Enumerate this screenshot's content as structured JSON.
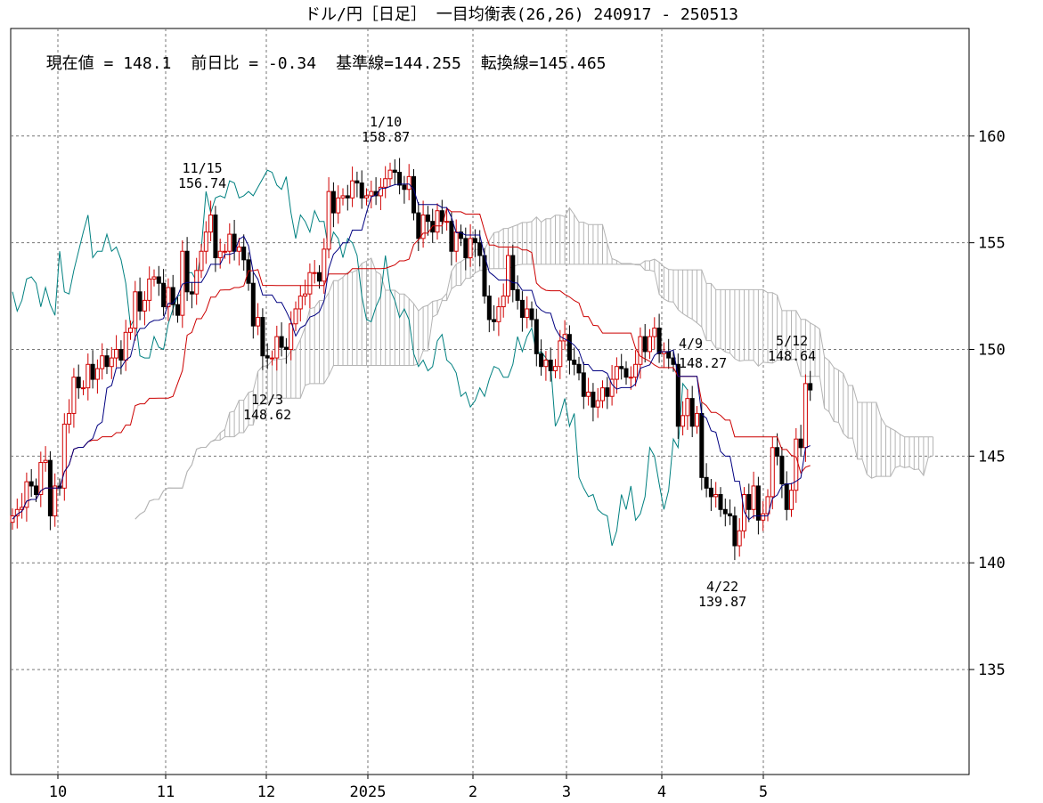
{
  "chart_data": {
    "type": "candlestick",
    "title": "ドル/円［日足］ 一目均衡表(26,26)  240917 - 250513",
    "info": {
      "current": "現在値 = 148.1",
      "change": "前日比 = -0.34",
      "kijun": "基準線=144.255",
      "tenkan": "転換線=145.465"
    },
    "ylim": [
      130.08,
      165.04
    ],
    "yticks": [
      135,
      140,
      145,
      150,
      155,
      160
    ],
    "xticks": [
      "10",
      "11",
      "12",
      "2025",
      "2",
      "3",
      "4",
      "5"
    ],
    "grid": true,
    "colors": {
      "up": "#d00000",
      "down": "#000000",
      "tenkan": "#000080",
      "kijun": "#cc0000",
      "chikou": "#008080",
      "cloud": "#b4b4b4"
    },
    "annotations": [
      {
        "date": "11/15",
        "value": "156.74"
      },
      {
        "date": "1/10",
        "value": "158.87"
      },
      {
        "date": "12/3",
        "value": "148.62"
      },
      {
        "date": "4/9",
        "value": "148.27"
      },
      {
        "date": "5/12",
        "value": "148.64"
      },
      {
        "date": "4/22",
        "value": "139.87"
      }
    ],
    "closes": [
      142.2,
      142.5,
      142.6,
      143.8,
      143.6,
      143.2,
      144.7,
      144.8,
      142.2,
      143.6,
      143.5,
      146.5,
      147.0,
      148.7,
      148.2,
      148.2,
      149.3,
      148.6,
      149.1,
      149.7,
      149.2,
      149.6,
      150.0,
      149.5,
      150.8,
      151.0,
      152.7,
      151.8,
      152.3,
      153.3,
      153.4,
      153.1,
      152.0,
      152.9,
      152.1,
      151.6,
      154.6,
      152.7,
      152.6,
      153.7,
      154.6,
      155.5,
      156.3,
      154.3,
      154.6,
      154.6,
      155.4,
      154.6,
      154.8,
      154.2,
      153.1,
      151.1,
      151.5,
      149.7,
      149.6,
      149.6,
      150.6,
      150.1,
      150.0,
      151.2,
      151.9,
      152.5,
      152.6,
      153.6,
      153.6,
      153.2,
      154.7,
      157.4,
      156.4,
      157.1,
      157.2,
      157.1,
      157.9,
      157.8,
      157.1,
      157.2,
      157.4,
      157.2,
      157.6,
      158.0,
      158.4,
      158.3,
      157.7,
      157.5,
      158.1,
      156.4,
      155.2,
      156.3,
      156.0,
      155.5,
      156.5,
      156.0,
      156.0,
      154.6,
      155.5,
      155.2,
      154.3,
      155.2,
      155.0,
      154.4,
      152.5,
      151.4,
      151.3,
      152.0,
      152.5,
      154.4,
      152.8,
      152.3,
      151.5,
      151.9,
      151.4,
      149.8,
      149.2,
      149.5,
      149.0,
      149.2,
      150.4,
      150.7,
      149.5,
      149.3,
      148.9,
      147.8,
      148.0,
      147.3,
      147.6,
      148.2,
      147.8,
      148.6,
      149.2,
      149.1,
      148.7,
      148.7,
      149.3,
      150.6,
      149.9,
      150.6,
      151.0,
      149.8,
      149.9,
      149.6,
      149.3,
      146.4,
      146.9,
      147.7,
      146.4,
      147.0,
      144.0,
      143.5,
      143.1,
      143.2,
      142.5,
      142.3,
      142.2,
      140.8,
      141.5,
      143.2,
      142.5,
      143.6,
      142.0,
      142.3,
      143.1,
      145.4,
      145.0,
      143.7,
      142.5,
      143.4,
      145.8,
      145.4,
      148.4,
      148.1
    ]
  }
}
